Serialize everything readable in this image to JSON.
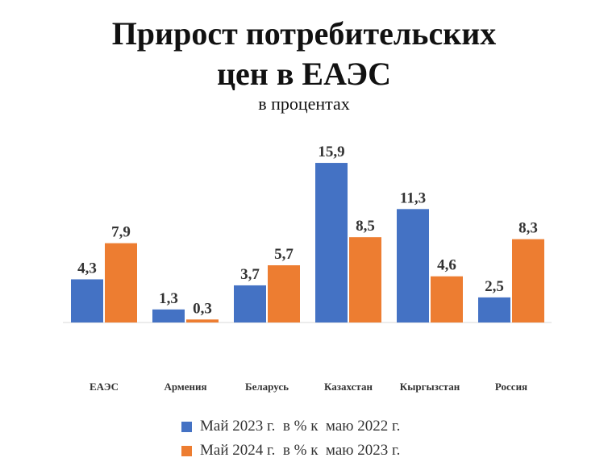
{
  "title_line1": "Прирост потребительских",
  "title_line2": "цен в ЕАЭС",
  "subtitle": "в процентах",
  "chart_data": {
    "type": "bar",
    "title": "Прирост потребительских цен в ЕАЭС",
    "subtitle": "в процентах",
    "categories": [
      "ЕАЭС",
      "Армения",
      "Беларусь",
      "Казахстан",
      "Кыргызстан",
      "Россия"
    ],
    "series": [
      {
        "name": "Май 2023 г.  в % к  маю 2022 г.",
        "color": "#4472C4",
        "values": [
          4.3,
          1.3,
          3.7,
          15.9,
          11.3,
          2.5
        ],
        "labels": [
          "4,3",
          "1,3",
          "3,7",
          "15,9",
          "11,3",
          "2,5"
        ]
      },
      {
        "name": "Май 2024 г.  в % к  маю 2023 г.",
        "color": "#ED7D31",
        "values": [
          7.9,
          0.3,
          5.7,
          8.5,
          4.6,
          8.3
        ],
        "labels": [
          "7,9",
          "0,3",
          "5,7",
          "8,5",
          "4,6",
          "8,3"
        ]
      }
    ],
    "ylim": [
      0,
      16
    ],
    "grid": false,
    "legend": "bottom"
  }
}
